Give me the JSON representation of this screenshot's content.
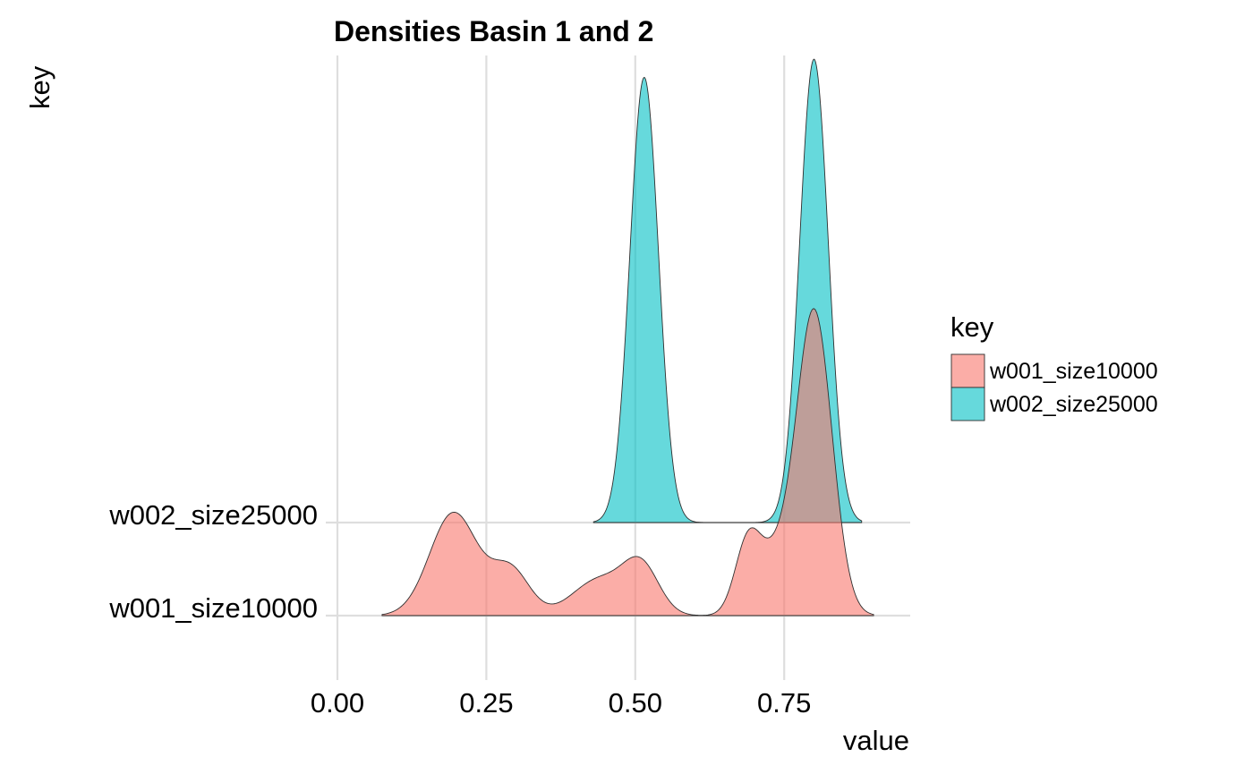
{
  "chart_data": {
    "type": "area",
    "subtype": "ridgeline-density",
    "title": "Densities Basin 1 and 2",
    "xlabel": "value",
    "ylabel": "key",
    "xlim": [
      0,
      0.96
    ],
    "x_ticks": [
      0.0,
      0.25,
      0.5,
      0.75
    ],
    "x_tick_labels": [
      "0.00",
      "0.25",
      "0.50",
      "0.75"
    ],
    "categories": [
      "w001_size10000",
      "w002_size25000"
    ],
    "grid": true,
    "legend": {
      "title": "key",
      "position": "right",
      "entries": [
        "w001_size10000",
        "w002_size25000"
      ]
    },
    "colors": [
      "#f8766d",
      "#00bfc4"
    ],
    "series": [
      {
        "name": "w001_size10000",
        "x_range": [
          0.075,
          0.9
        ],
        "height_scale_units": 3.3,
        "components": [
          {
            "mean": 0.195,
            "sd": 0.04,
            "weight": 0.165
          },
          {
            "mean": 0.29,
            "sd": 0.032,
            "weight": 0.074
          },
          {
            "mean": 0.44,
            "sd": 0.045,
            "weight": 0.058
          },
          {
            "mean": 0.51,
            "sd": 0.03,
            "weight": 0.075
          },
          {
            "mean": 0.69,
            "sd": 0.022,
            "weight": 0.122
          },
          {
            "mean": 0.735,
            "sd": 0.025,
            "weight": 0.075
          },
          {
            "mean": 0.8,
            "sd": 0.03,
            "weight": 0.49
          }
        ]
      },
      {
        "name": "w002_size25000",
        "x_range": [
          0.43,
          0.88
        ],
        "height_scale_units": 4.98,
        "components": [
          {
            "mean": 0.515,
            "sd": 0.024,
            "weight": 0.49
          },
          {
            "mean": 0.8,
            "sd": 0.024,
            "weight": 0.51
          }
        ]
      }
    ]
  }
}
